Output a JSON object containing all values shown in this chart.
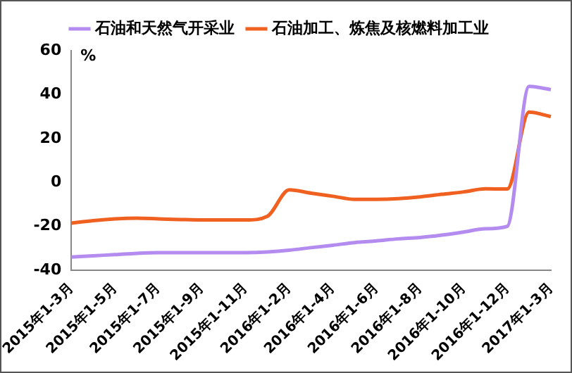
{
  "chart_data": {
    "type": "line",
    "ylabel": "%",
    "categories": [
      "2015年1-3月",
      null,
      "2015年1-5月",
      null,
      "2015年1-7月",
      null,
      "2015年1-9月",
      null,
      "2015年1-11月",
      null,
      "2016年1-2月",
      null,
      "2016年1-4月",
      null,
      "2016年1-6月",
      null,
      "2016年1-8月",
      null,
      "2016年1-10月",
      null,
      "2016年1-12月",
      null,
      "2017年1-3月"
    ],
    "series": [
      {
        "name": "石油和天然气开采业",
        "color": "#b48cf0",
        "values": [
          -34,
          -33.4,
          -32.9,
          -32.3,
          -32,
          -32,
          -32,
          -32,
          -32,
          -31.7,
          -30.9,
          -29.7,
          -28.6,
          -27.4,
          -26.6,
          -25.7,
          -25.1,
          -24,
          -22.6,
          -21.1,
          -20,
          43.7,
          42.3
        ]
      },
      {
        "name": "石油加工、炼焦及核燃料加工业",
        "color": "#f06020",
        "values": [
          -18.5,
          -17.4,
          -16.6,
          -16.3,
          -16.6,
          -16.9,
          -17.1,
          -17.1,
          -17.1,
          -15.4,
          -3.4,
          -4.9,
          -6.3,
          -7.7,
          -7.7,
          -7.4,
          -6.6,
          -5.4,
          -4.3,
          -2.9,
          -3,
          32,
          30
        ]
      }
    ],
    "ylim": [
      -40,
      60
    ],
    "yticks": [
      -40,
      -20,
      0,
      20,
      40,
      60
    ],
    "grid": false,
    "legend": "top",
    "marker": "none",
    "line_style": "solid"
  }
}
